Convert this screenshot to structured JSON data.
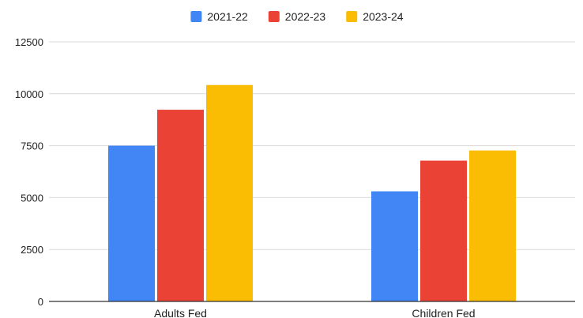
{
  "chart_data": {
    "type": "bar",
    "categories": [
      "Adults Fed",
      "Children Fed"
    ],
    "series": [
      {
        "name": "2021-22",
        "color": "#4285f4",
        "values": [
          7500,
          5300
        ]
      },
      {
        "name": "2022-23",
        "color": "#ea4335",
        "values": [
          9230,
          6780
        ]
      },
      {
        "name": "2023-24",
        "color": "#fbbc04",
        "values": [
          10420,
          7270
        ]
      }
    ],
    "ylim": [
      0,
      12500
    ],
    "yticks": [
      "0",
      "2500",
      "5000",
      "7500",
      "10000",
      "12500"
    ],
    "legend_position": "top",
    "grid": true
  }
}
